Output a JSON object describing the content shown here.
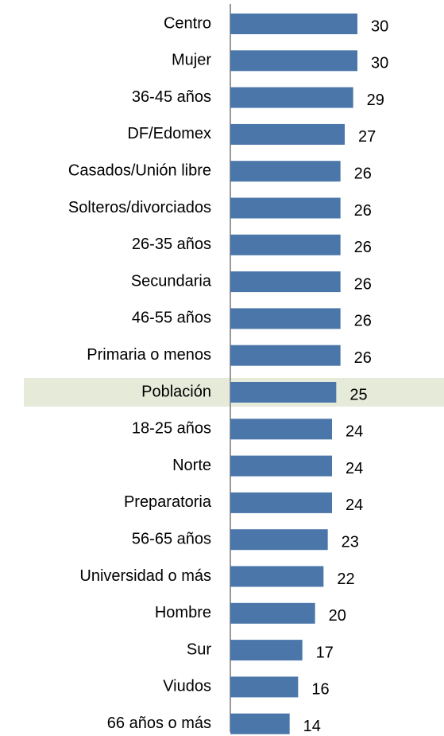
{
  "chart_data": {
    "type": "bar",
    "orientation": "horizontal",
    "categories": [
      "Centro",
      "Mujer",
      "36-45 años",
      "DF/Edomex",
      "Casados/Unión libre",
      "Solteros/divorciados",
      "26-35 años",
      "Secundaria",
      "46-55 años",
      "Primaria o menos",
      "Población",
      "18-25 años",
      "Norte",
      "Preparatoria",
      "56-65 años",
      "Universidad o más",
      "Hombre",
      "Sur",
      "Viudos",
      "66 años o más"
    ],
    "values": [
      30,
      30,
      29,
      27,
      26,
      26,
      26,
      26,
      26,
      26,
      25,
      24,
      24,
      24,
      23,
      22,
      20,
      17,
      16,
      14
    ],
    "color": "#4a76aa",
    "highlight": "Población",
    "highlight_color": "#e5ead9"
  }
}
